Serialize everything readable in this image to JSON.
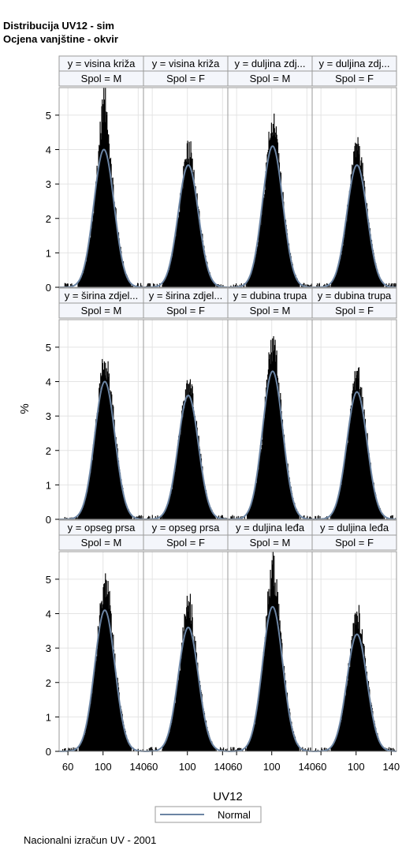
{
  "titles": [
    "Distribucija UV12 - sim",
    "Ocjena vanjštine - okvir"
  ],
  "footnote": "Nacionalni izračun UV - 2001",
  "legend": {
    "label": "Normal",
    "line_color": "#6b84a3"
  },
  "colors": {
    "bar": "#000000",
    "curve": "#6b84a3",
    "facet_header_bg": "#f4f6fb",
    "grid": "#e4e4e4",
    "panel_border": "#9a9a9a"
  },
  "chart_data": {
    "type": "bar",
    "title": "Distribucija UV12 - sim",
    "subtitle": "Ocjena vanjštine - okvir",
    "xlabel": "UV12",
    "ylabel": "%",
    "xlim": [
      50,
      146
    ],
    "ylim": [
      0,
      5.8
    ],
    "xticks": [
      60,
      100,
      140
    ],
    "yticks": [
      0,
      1,
      2,
      3,
      4,
      5
    ],
    "grid": true,
    "legend_position": "bottom-center",
    "row_labels": [
      "y = visina križa",
      "y = duljina zdj...",
      "y = širina zdjel...",
      "y = dubina trupa",
      "y = opseg prsa",
      "y = duljina leđa"
    ],
    "panels": [
      {
        "row": 0,
        "col": 0,
        "y_label": "y = visina križa",
        "spol_label": "Spol = M",
        "peak_pct": 5.6,
        "normal_peak_pct": 4.0,
        "mean": 101
      },
      {
        "row": 0,
        "col": 1,
        "y_label": "y = visina križa",
        "spol_label": "Spol = F",
        "peak_pct": 4.05,
        "normal_peak_pct": 3.55,
        "mean": 101
      },
      {
        "row": 0,
        "col": 2,
        "y_label": "y = duljina zdj...",
        "spol_label": "Spol = M",
        "peak_pct": 5.0,
        "normal_peak_pct": 4.1,
        "mean": 101
      },
      {
        "row": 0,
        "col": 3,
        "y_label": "y = duljina zdj...",
        "spol_label": "Spol = F",
        "peak_pct": 4.15,
        "normal_peak_pct": 3.55,
        "mean": 101
      },
      {
        "row": 1,
        "col": 0,
        "y_label": "y = širina zdjel...",
        "spol_label": "Spol = M",
        "peak_pct": 4.75,
        "normal_peak_pct": 4.0,
        "mean": 102
      },
      {
        "row": 1,
        "col": 1,
        "y_label": "y = širina zdjel...",
        "spol_label": "Spol = F",
        "peak_pct": 3.95,
        "normal_peak_pct": 3.6,
        "mean": 101
      },
      {
        "row": 1,
        "col": 2,
        "y_label": "y = dubina trupa",
        "spol_label": "Spol = M",
        "peak_pct": 5.4,
        "normal_peak_pct": 4.3,
        "mean": 101
      },
      {
        "row": 1,
        "col": 3,
        "y_label": "y = dubina trupa",
        "spol_label": "Spol = F",
        "peak_pct": 4.2,
        "normal_peak_pct": 3.7,
        "mean": 101
      },
      {
        "row": 2,
        "col": 0,
        "y_label": "y = opseg prsa",
        "spol_label": "Spol = M",
        "peak_pct": 5.1,
        "normal_peak_pct": 4.1,
        "mean": 102
      },
      {
        "row": 2,
        "col": 1,
        "y_label": "y = opseg prsa",
        "spol_label": "Spol = F",
        "peak_pct": 4.35,
        "normal_peak_pct": 3.6,
        "mean": 101
      },
      {
        "row": 2,
        "col": 2,
        "y_label": "y = duljina leđa",
        "spol_label": "Spol = M",
        "peak_pct": 5.6,
        "normal_peak_pct": 4.2,
        "mean": 101
      },
      {
        "row": 2,
        "col": 3,
        "y_label": "y = duljina leđa",
        "spol_label": "Spol = F",
        "peak_pct": 4.0,
        "normal_peak_pct": 3.4,
        "mean": 101
      }
    ]
  }
}
